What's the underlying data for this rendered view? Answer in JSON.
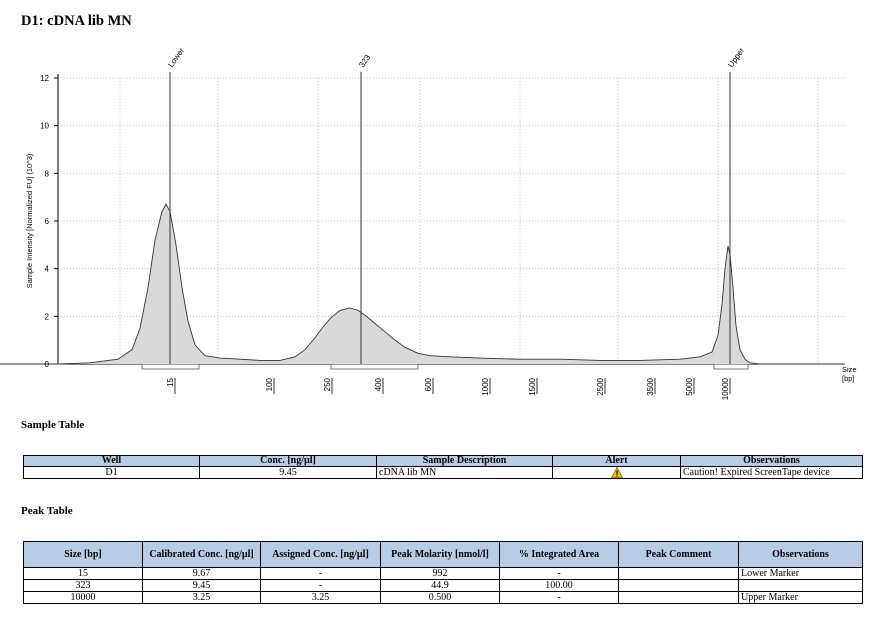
{
  "page": {
    "title": "D1: cDNA lib MN"
  },
  "chart_data": {
    "type": "line",
    "title": "D1: cDNA lib MN",
    "ylabel": "Sample Intensity [Normalized FU] (10^3)",
    "xlabel": "Size [bp]",
    "ylim": [
      0,
      12
    ],
    "yticks": [
      0,
      2,
      4,
      6,
      8,
      10,
      12
    ],
    "xticks": [
      "15",
      "100",
      "250",
      "400",
      "600",
      "1000",
      "1500",
      "2500",
      "3500",
      "5000",
      "10000"
    ],
    "grid": true,
    "series": [
      {
        "x": [
          0,
          60,
          90,
          118,
          132,
          140,
          148,
          155,
          162,
          166,
          170,
          176,
          182,
          188,
          195,
          205,
          220,
          240,
          260,
          280,
          295,
          305,
          315,
          322,
          330,
          340,
          350,
          358,
          365,
          375,
          385,
          395,
          405,
          418,
          430,
          450,
          480,
          520,
          560,
          600,
          640,
          680,
          700,
          712,
          718,
          722,
          725,
          728,
          730,
          733,
          736,
          740,
          745,
          750,
          760,
          785,
          845
        ],
        "y": [
          0,
          0,
          0.05,
          0.2,
          0.6,
          1.5,
          3.2,
          5.2,
          6.4,
          6.7,
          6.4,
          5.0,
          3.2,
          1.8,
          0.8,
          0.35,
          0.25,
          0.2,
          0.15,
          0.15,
          0.3,
          0.6,
          1.1,
          1.5,
          1.9,
          2.25,
          2.35,
          2.25,
          2.05,
          1.7,
          1.35,
          1.0,
          0.7,
          0.45,
          0.35,
          0.3,
          0.25,
          0.2,
          0.2,
          0.15,
          0.15,
          0.2,
          0.3,
          0.5,
          1.2,
          2.5,
          4.0,
          4.95,
          4.6,
          3.2,
          1.6,
          0.6,
          0.2,
          0.05,
          0,
          0,
          0
        ]
      }
    ],
    "peaks": [
      {
        "label": "Lower",
        "x": 170
      },
      {
        "label": "323",
        "x": 361
      },
      {
        "label": "Upper",
        "x": 730
      }
    ],
    "axis_unit_label_1": "Size",
    "axis_unit_label_2": "[bp]"
  },
  "sample_table": {
    "title": "Sample Table",
    "headers": [
      "Well",
      "Conc. [ng/µl]",
      "Sample Description",
      "Alert",
      "Observations"
    ],
    "rows": [
      {
        "well": "D1",
        "conc": "9.45",
        "description": "cDNA lib MN",
        "alert": "warning-icon",
        "observations": "Caution! Expired ScreenTape device"
      }
    ]
  },
  "peak_table": {
    "title": "Peak Table",
    "headers": [
      "Size [bp]",
      "Calibrated Conc. [ng/µl]",
      "Assigned Conc. [ng/µl]",
      "Peak Molarity [nmol/l]",
      "% Integrated Area",
      "Peak Comment",
      "Observations"
    ],
    "rows": [
      {
        "size": "15",
        "cal_conc": "9.67",
        "assigned_conc": "-",
        "molarity": "992",
        "area": "-",
        "comment": "",
        "observations": "Lower Marker"
      },
      {
        "size": "323",
        "cal_conc": "9.45",
        "assigned_conc": "-",
        "molarity": "44.9",
        "area": "100.00",
        "comment": "",
        "observations": ""
      },
      {
        "size": "10000",
        "cal_conc": "3.25",
        "assigned_conc": "3.25",
        "molarity": "0.500",
        "area": "-",
        "comment": "",
        "observations": "Upper Marker"
      }
    ]
  },
  "colors": {
    "header_bg": "#b8cce4",
    "fill": "#d9d9d9",
    "warning": "#f5c400"
  }
}
